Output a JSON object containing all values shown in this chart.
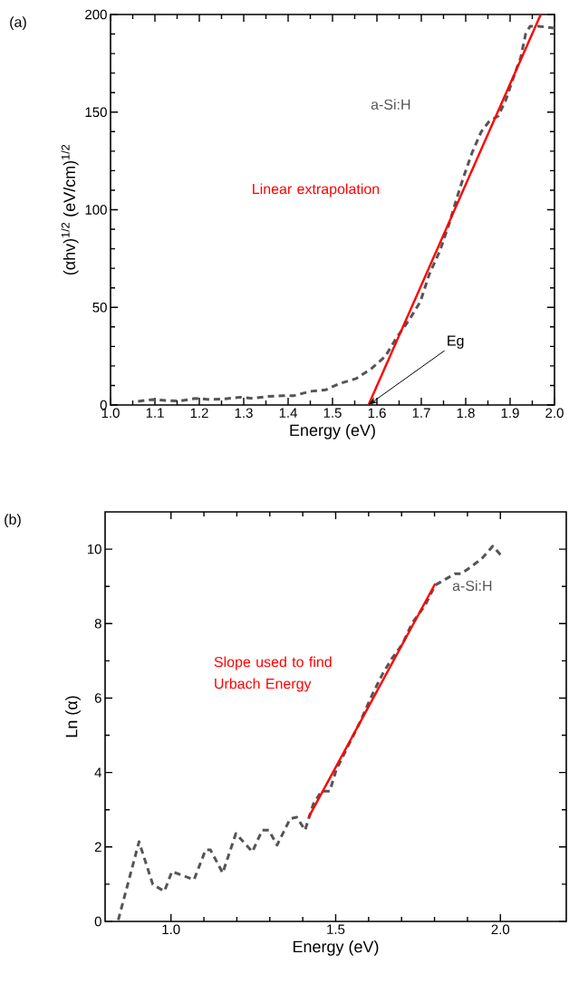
{
  "chart_data": [
    {
      "type": "line",
      "xlabel": "Energy (eV)",
      "ylabel": "(αhv)$^{1/2}$ (eV/cm)$^{1/2}$",
      "xlim": [
        1.0,
        2.0
      ],
      "ylim": [
        0,
        200
      ],
      "xticks": [
        {
          "value": 1.0,
          "label": "1.0"
        },
        {
          "value": 1.1,
          "label": "1.1"
        },
        {
          "value": 1.2,
          "label": "1.2"
        },
        {
          "value": 1.3,
          "label": "1.3"
        },
        {
          "value": 1.4,
          "label": "1.4"
        },
        {
          "value": 1.5,
          "label": "1.5"
        },
        {
          "value": 1.6,
          "label": "1.6"
        },
        {
          "value": 1.7,
          "label": "1.7"
        },
        {
          "value": 1.8,
          "label": "1.8"
        },
        {
          "value": 1.9,
          "label": "1.9"
        },
        {
          "value": 2.0,
          "label": "2.0"
        }
      ],
      "yticks": [
        0,
        50,
        100,
        150,
        200
      ],
      "series": [
        {
          "name": "a-Si:H",
          "color": "#555555",
          "line_style": "dashed",
          "x": [
            1.062,
            1.095,
            1.124,
            1.155,
            1.192,
            1.223,
            1.251,
            1.292,
            1.32,
            1.354,
            1.388,
            1.412,
            1.45,
            1.485,
            1.515,
            1.553,
            1.588,
            1.619,
            1.643,
            1.674,
            1.698,
            1.718,
            1.742,
            1.763,
            1.78,
            1.797,
            1.814,
            1.835,
            1.852,
            1.873,
            1.89,
            1.911,
            1.924,
            1.935,
            1.945,
            1.964,
            2.0
          ],
          "values": [
            1.9,
            2.8,
            2.3,
            2,
            3.4,
            2.8,
            3,
            4,
            3.4,
            4.4,
            4.7,
            4.7,
            7,
            7.8,
            10.9,
            13.5,
            18.7,
            24.9,
            34,
            44,
            53,
            67,
            79,
            93,
            106,
            118,
            129,
            140,
            145,
            148,
            156,
            170,
            178,
            190,
            194,
            194,
            193
          ]
        },
        {
          "name": "Linear extrapolation",
          "color": "#ff0000",
          "line_style": "solid",
          "x": [
            1.581,
            1.969
          ],
          "values": [
            0,
            200
          ]
        }
      ],
      "annotations": [
        "(a)",
        {
          "text": "Eg",
          "x": 1.581,
          "y": 0
        }
      ]
    },
    {
      "type": "line",
      "xlabel": "Energy (eV)",
      "ylabel": "Ln (α)",
      "xlim": [
        0.8,
        2.2
      ],
      "ylim": [
        0,
        11
      ],
      "xticks": [
        {
          "value": 1.0,
          "label": "1.0"
        },
        {
          "value": 1.5,
          "label": "1.5"
        },
        {
          "value": 2.0,
          "label": "2.0"
        }
      ],
      "yticks": [
        0,
        2,
        4,
        6,
        8,
        10
      ],
      "series": [
        {
          "name": "a-Si:H",
          "color": "#555555",
          "line_style": "dashed",
          "x": [
            0.84,
            0.903,
            0.945,
            0.98,
            1.003,
            1.07,
            1.105,
            1.12,
            1.157,
            1.197,
            1.247,
            1.277,
            1.297,
            1.322,
            1.362,
            1.382,
            1.407,
            1.432,
            1.457,
            1.482,
            1.502,
            1.542,
            1.572,
            1.612,
            1.642,
            1.672,
            1.702,
            1.732,
            1.772,
            1.802,
            1.827,
            1.862,
            1.882,
            1.942,
            1.977,
            2.007
          ],
          "values": [
            0.04,
            2.14,
            0.99,
            0.81,
            1.34,
            1.12,
            1.92,
            1.92,
            1.3,
            2.36,
            1.87,
            2.45,
            2.45,
            2.05,
            2.76,
            2.8,
            2.45,
            3.15,
            3.5,
            3.5,
            4.08,
            4.79,
            5.32,
            6.11,
            6.64,
            7.08,
            7.44,
            8.01,
            8.5,
            9.03,
            9.16,
            9.34,
            9.34,
            9.73,
            10.08,
            9.78
          ]
        },
        {
          "name": "Slope used to find Urbach Energy",
          "color": "#ff0000",
          "line_style": "solid",
          "x": [
            1.418,
            1.802
          ],
          "values": [
            2.8,
            9.07
          ]
        }
      ],
      "annotations": [
        "(b)"
      ]
    }
  ]
}
